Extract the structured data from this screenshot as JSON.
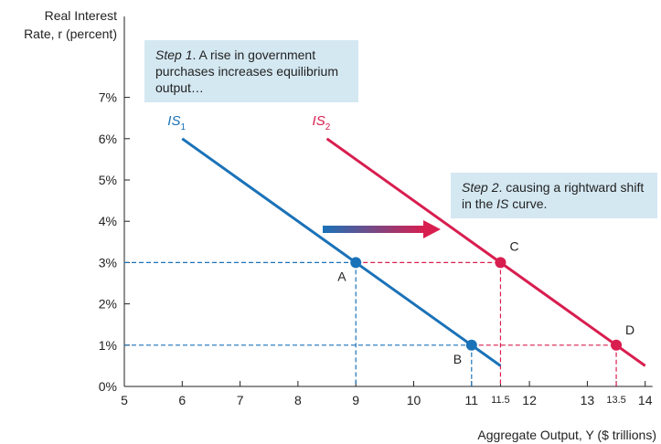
{
  "chart_data": {
    "type": "line",
    "ylabel_line1": "Real Interest",
    "ylabel_line2": "Rate, r (percent)",
    "xlabel": "Aggregate Output, Y ($ trillions)",
    "xlim": [
      5,
      14
    ],
    "ylim": [
      0,
      7
    ],
    "x_ticks": [
      "5",
      "6",
      "7",
      "8",
      "9",
      "10",
      "11",
      "12",
      "13",
      "14"
    ],
    "x_ticks_small": [
      "11.5",
      "13.5"
    ],
    "y_ticks": [
      "0%",
      "1%",
      "2%",
      "3%",
      "4%",
      "5%",
      "6%",
      "7%"
    ],
    "series": [
      {
        "name": "IS",
        "subscript": "1",
        "color": "#1a72b8",
        "x": [
          6,
          11.5
        ],
        "y": [
          6,
          0.5
        ]
      },
      {
        "name": "IS",
        "subscript": "2",
        "color": "#d81e4f",
        "x": [
          8.5,
          14
        ],
        "y": [
          6,
          0.5
        ]
      }
    ],
    "points": [
      {
        "label": "A",
        "x": 9,
        "y": 3,
        "color": "#1a72b8"
      },
      {
        "label": "B",
        "x": 11,
        "y": 1,
        "color": "#1a72b8"
      },
      {
        "label": "C",
        "x": 11.5,
        "y": 3,
        "color": "#d81e4f"
      },
      {
        "label": "D",
        "x": 13.5,
        "y": 1,
        "color": "#d81e4f"
      }
    ],
    "shift_arrow": {
      "from_color": "#1a72b8",
      "to_color": "#d81e4f"
    }
  },
  "callouts": {
    "step1_prefix": "Step 1",
    "step1_text": ". A rise in government purchases increases equilibrium output…",
    "step2_prefix": "Step 2",
    "step2_text_a": ". causing a rightward shift in the ",
    "step2_em": "IS",
    "step2_text_b": " curve."
  }
}
